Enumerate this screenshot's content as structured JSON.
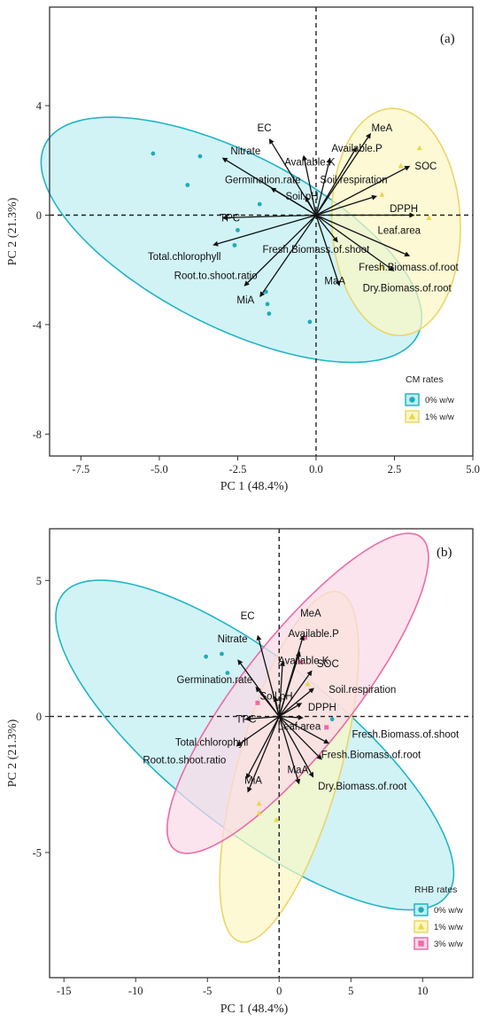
{
  "panels": [
    {
      "id": "a",
      "panel_label": "(a)",
      "legend_title": "CM rates",
      "colors": {
        "group1": "#22aab8",
        "group2": "#e9d64a",
        "ellipse1_fill": "#bfeef2",
        "ellipse1_stroke": "#22b5c6",
        "ellipse2_fill": "#fbf6c3",
        "ellipse2_stroke": "#ead56a"
      }
    },
    {
      "id": "b",
      "panel_label": "(b)",
      "legend_title": "RHB rates",
      "colors": {
        "group1": "#22aab8",
        "group2": "#e9d64a",
        "group3": "#ee6aa7",
        "ellipse1_fill": "#bfeef2",
        "ellipse1_stroke": "#22b5c6",
        "ellipse2_fill": "#fbf6c3",
        "ellipse2_stroke": "#ead56a",
        "ellipse3_fill": "#fbd9e8",
        "ellipse3_stroke": "#ee6aa7"
      }
    }
  ],
  "chart_data": [
    {
      "type": "scatter",
      "title": "",
      "xlabel": "PC 1 (48.4%)",
      "ylabel": "PC 2 (21.3%)",
      "xlim": [
        -8.5,
        5.0
      ],
      "ylim": [
        -8.8,
        7.6
      ],
      "xticks": [
        "-7.5",
        "-5.0",
        "-2.5",
        "0.0",
        "2.5",
        "5.0"
      ],
      "yticks": [
        "4",
        "0",
        "-4",
        "-8"
      ],
      "grid": false,
      "legend_position": "bottom-right",
      "series": [
        {
          "name": "0% w/w",
          "marker": "circle",
          "color": "#22aab8",
          "points": [
            [
              -5.2,
              2.25
            ],
            [
              -4.1,
              1.1
            ],
            [
              -3.7,
              2.15
            ],
            [
              -2.6,
              -1.1
            ],
            [
              -2.5,
              -0.55
            ],
            [
              -1.8,
              0.4
            ],
            [
              -1.6,
              -2.8
            ],
            [
              -1.55,
              -3.25
            ],
            [
              -1.5,
              -3.6
            ],
            [
              -0.2,
              -3.9
            ]
          ]
        },
        {
          "name": "1% w/w",
          "marker": "triangle",
          "color": "#e9d64a",
          "points": [
            [
              3.3,
              2.45
            ],
            [
              2.7,
              1.8
            ],
            [
              2.1,
              0.75
            ],
            [
              3.6,
              -0.1
            ],
            [
              2.1,
              -1.9
            ]
          ]
        }
      ],
      "ellipses": [
        {
          "group": "0% w/w",
          "center": [
            -2.7,
            -0.9
          ],
          "semi_major": 6.9,
          "semi_minor": 3.05,
          "angle_deg": -32
        },
        {
          "group": "1% w/w",
          "center": [
            2.55,
            -0.25
          ],
          "semi_major": 4.15,
          "semi_minor": 2.05,
          "angle_deg": 92
        }
      ],
      "loadings": [
        {
          "label": "EC",
          "x": -1.5,
          "y": 2.8
        },
        {
          "label": "Nitrate",
          "x": -3.0,
          "y": 2.1
        },
        {
          "label": "Available.K",
          "x": -0.4,
          "y": 2.2
        },
        {
          "label": "Germination.rate",
          "x": -1.45,
          "y": 1.0
        },
        {
          "label": "Soil.pH",
          "x": -0.35,
          "y": 0.7
        },
        {
          "label": "Soil.respiration",
          "x": 0.45,
          "y": 2.1
        },
        {
          "label": "MeA",
          "x": 1.75,
          "y": 3.0
        },
        {
          "label": "Available.P",
          "x": 1.3,
          "y": 2.5
        },
        {
          "label": "SOC",
          "x": 3.0,
          "y": 1.8
        },
        {
          "label": "DPPH",
          "x": 1.95,
          "y": 0.7
        },
        {
          "label": "Leaf.area",
          "x": 3.15,
          "y": 0.0
        },
        {
          "label": "Fresh.Biomass.of.shoot",
          "x": 0.7,
          "y": -1.0
        },
        {
          "label": "Fresh.Biomass.of.root",
          "x": 3.0,
          "y": -1.5
        },
        {
          "label": "Dry.Biomass.of.root",
          "x": 2.5,
          "y": -2.05
        },
        {
          "label": "MaA",
          "x": 0.75,
          "y": -2.6
        },
        {
          "label": "TPC",
          "x": -3.0,
          "y": -0.1
        },
        {
          "label": "Total.chlorophyll",
          "x": -3.3,
          "y": -1.1
        },
        {
          "label": "Root.to.shoot.ratio",
          "x": -2.3,
          "y": -2.6
        },
        {
          "label": "MiA",
          "x": -1.8,
          "y": -3.0
        }
      ],
      "label_positions": {
        "EC": [
          -1.65,
          3.2
        ],
        "Nitrate": [
          -2.25,
          2.35
        ],
        "Available.K": [
          -0.2,
          1.95
        ],
        "Germination.rate": [
          -1.7,
          1.3
        ],
        "Soil.pH": [
          -0.45,
          0.7
        ],
        "Soil.respiration": [
          1.2,
          1.3
        ],
        "MeA": [
          2.1,
          3.2
        ],
        "Available.P": [
          1.3,
          2.45
        ],
        "SOC": [
          3.5,
          1.8
        ],
        "DPPH": [
          2.8,
          0.25
        ],
        "Leaf.area": [
          2.65,
          -0.55
        ],
        "Fresh.Biomass.of.shoot": [
          0.0,
          -1.25
        ],
        "Fresh.Biomass.of.root": [
          2.95,
          -1.9
        ],
        "Dry.Biomass.of.root": [
          2.9,
          -2.65
        ],
        "MaA": [
          0.6,
          -2.4
        ],
        "TPC": [
          -2.75,
          -0.1
        ],
        "Total.chlorophyll": [
          -4.2,
          -1.5
        ],
        "Root.to.shoot.ratio": [
          -3.2,
          -2.2
        ],
        "MiA": [
          -2.25,
          -3.1
        ]
      }
    },
    {
      "type": "scatter",
      "title": "",
      "xlabel": "PC 1 (48.4%)",
      "ylabel": "PC 2 (21.3%)",
      "xlim": [
        -16.0,
        13.5
      ],
      "ylim": [
        -9.6,
        6.9
      ],
      "xticks": [
        "-15",
        "-10",
        "-5",
        "0",
        "5",
        "10"
      ],
      "yticks": [
        "5",
        "0",
        "-5"
      ],
      "grid": false,
      "legend_position": "bottom-right",
      "series": [
        {
          "name": "0% w/w",
          "marker": "circle",
          "color": "#22aab8",
          "points": [
            [
              -5.1,
              2.2
            ],
            [
              -4.0,
              2.3
            ],
            [
              -3.6,
              1.6
            ],
            [
              3.7,
              -0.1
            ]
          ]
        },
        {
          "name": "1% w/w",
          "marker": "triangle",
          "color": "#e9d64a",
          "points": [
            [
              -1.4,
              -3.2
            ],
            [
              -1.4,
              -3.55
            ],
            [
              2.0,
              1.2
            ],
            [
              -0.2,
              -3.8
            ]
          ]
        },
        {
          "name": "3% w/w",
          "marker": "square",
          "color": "#ee6aa7",
          "points": [
            [
              -1.5,
              0.5
            ],
            [
              1.8,
              2.9
            ],
            [
              1.5,
              2.0
            ],
            [
              3.3,
              -0.4
            ]
          ]
        }
      ],
      "ellipses": [
        {
          "group": "0% w/w",
          "center": [
            -1.7,
            -1.05
          ],
          "semi_major": 14.7,
          "semi_minor": 3.6,
          "angle_deg": -20
        },
        {
          "group": "1% w/w",
          "center": [
            0.7,
            -1.85
          ],
          "semi_major": 7.4,
          "semi_minor": 3.2,
          "angle_deg": 57
        },
        {
          "group": "3% w/w",
          "center": [
            1.3,
            0.85
          ],
          "semi_major": 10.5,
          "semi_minor": 2.7,
          "angle_deg": 31
        }
      ],
      "loadings": [
        {
          "label": "EC",
          "x": -1.5,
          "y": 3.0
        },
        {
          "label": "Nitrate",
          "x": -2.9,
          "y": 2.1
        },
        {
          "label": "Available.K",
          "x": 0.25,
          "y": 2.05
        },
        {
          "label": "Germination.rate",
          "x": -1.65,
          "y": 1.1
        },
        {
          "label": "Soil.pH",
          "x": -0.3,
          "y": 0.75
        },
        {
          "label": "MeA",
          "x": 1.7,
          "y": 3.0
        },
        {
          "label": "Available.P",
          "x": 1.45,
          "y": 2.4
        },
        {
          "label": "SOC",
          "x": 2.3,
          "y": 1.7
        },
        {
          "label": "Soil.respiration",
          "x": 2.45,
          "y": 1.05
        },
        {
          "label": "DPPH",
          "x": 1.6,
          "y": 0.5
        },
        {
          "label": "Leaf.area",
          "x": 1.7,
          "y": -0.05
        },
        {
          "label": "Fresh.Biomass.of.shoot",
          "x": 3.5,
          "y": -1.0
        },
        {
          "label": "Fresh.Biomass.of.root",
          "x": 3.0,
          "y": -1.6
        },
        {
          "label": "Dry.Biomass.of.root",
          "x": 2.4,
          "y": -2.25
        },
        {
          "label": "MaA",
          "x": 1.4,
          "y": -2.5
        },
        {
          "label": "TPC",
          "x": -2.4,
          "y": -0.1
        },
        {
          "label": "Total.chlorophyll",
          "x": -3.0,
          "y": -1.1
        },
        {
          "label": "Root.to.shoot.ratio",
          "x": -2.3,
          "y": -2.3
        },
        {
          "label": "MiA",
          "x": -2.2,
          "y": -2.8
        }
      ],
      "label_positions": {
        "EC": [
          -2.2,
          3.7
        ],
        "Nitrate": [
          -3.25,
          2.85
        ],
        "Available.K": [
          1.7,
          2.05
        ],
        "Germination.rate": [
          -4.5,
          1.35
        ],
        "Soil.pH": [
          -0.2,
          0.75
        ],
        "MeA": [
          2.2,
          3.8
        ],
        "Available.P": [
          2.4,
          3.05
        ],
        "SOC": [
          3.4,
          1.95
        ],
        "Soil.respiration": [
          5.8,
          1.0
        ],
        "DPPH": [
          3.0,
          0.35
        ],
        "Leaf.area": [
          1.4,
          -0.35
        ],
        "Fresh.Biomass.of.shoot": [
          8.8,
          -0.65
        ],
        "Fresh.Biomass.of.root": [
          6.4,
          -1.4
        ],
        "Dry.Biomass.of.root": [
          5.8,
          -2.55
        ],
        "MaA": [
          1.3,
          -1.95
        ],
        "TPC": [
          -2.3,
          -0.1
        ],
        "Total.chlorophyll": [
          -4.7,
          -0.95
        ],
        "Root.to.shoot.ratio": [
          -6.6,
          -1.6
        ],
        "MiA": [
          -1.8,
          -2.35
        ]
      }
    }
  ]
}
